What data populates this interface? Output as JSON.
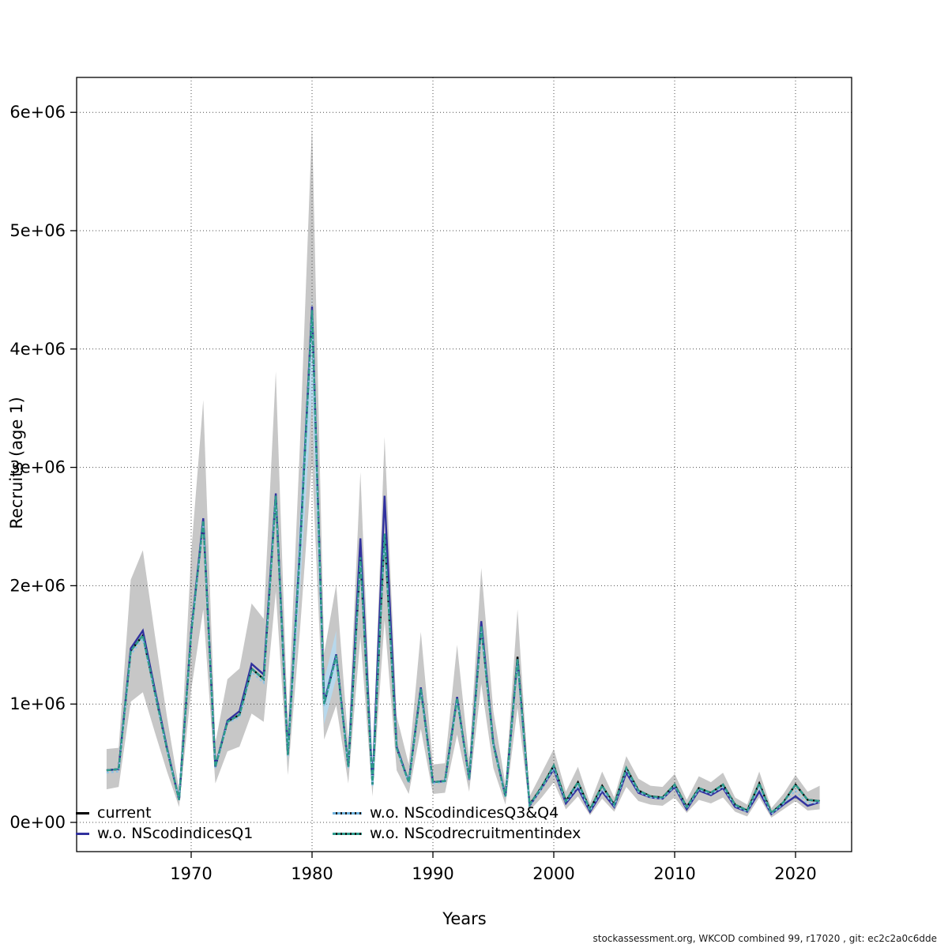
{
  "footer": "stockassessment.org, WKCOD combined 99, r17020 , git: ec2c2a0c6dde",
  "axes": {
    "xlabel": "Years",
    "ylabel": "Recruits (age 1)",
    "x_ticks": [
      1970,
      1980,
      1990,
      2000,
      2010,
      2020
    ],
    "y_ticks": [
      {
        "v": 0,
        "label": "0e+00"
      },
      {
        "v": 1,
        "label": "1e+06"
      },
      {
        "v": 2,
        "label": "2e+06"
      },
      {
        "v": 3,
        "label": "3e+06"
      },
      {
        "v": 4,
        "label": "4e+06"
      },
      {
        "v": 5,
        "label": "5e+06"
      },
      {
        "v": 6,
        "label": "6e+06"
      }
    ]
  },
  "legend": [
    {
      "label": "current",
      "color": "#000000",
      "style": "solid"
    },
    {
      "label": "w.o. NScodindicesQ1",
      "color": "#31319E",
      "style": "solid"
    },
    {
      "label": "w.o. NScodindicesQ3&Q4",
      "color": "#8FC4E6",
      "style": "dotted"
    },
    {
      "label": "w.o. NScodrecruitmentindex",
      "color": "#2D9B8C",
      "style": "dotted"
    }
  ],
  "colors": {
    "ci_band": "#C7C7C7",
    "inner_ci_band": "#B5D9F0",
    "current": "#000000",
    "wo_NScodindicesQ1": "#31319E",
    "wo_NScodindicesQ3Q4": "#8FC4E6",
    "wo_NScodrecruitmentindex": "#2D9B8C",
    "grid": "#4d4d4d",
    "axis": "#000000"
  },
  "chart_data": {
    "type": "line",
    "title": "",
    "xlabel": "Years",
    "ylabel": "Recruits (age 1)",
    "units": "millions of recruits",
    "xlim": [
      1961.5,
      2024.5
    ],
    "ylim": [
      0,
      6.3
    ],
    "grid": "dotted both axes at labeled ticks",
    "legend_position": "bottom-left inside plot, two columns",
    "x": [
      1963,
      1964,
      1965,
      1966,
      1967,
      1968,
      1969,
      1970,
      1971,
      1972,
      1973,
      1974,
      1975,
      1976,
      1977,
      1978,
      1979,
      1980,
      1981,
      1982,
      1983,
      1984,
      1985,
      1986,
      1987,
      1988,
      1989,
      1990,
      1991,
      1992,
      1993,
      1994,
      1995,
      1996,
      1997,
      1998,
      1999,
      2000,
      2001,
      2002,
      2003,
      2004,
      2005,
      2006,
      2007,
      2008,
      2009,
      2010,
      2011,
      2012,
      2013,
      2014,
      2015,
      2016,
      2017,
      2018,
      2019,
      2020,
      2021,
      2022
    ],
    "series": [
      {
        "name": "current",
        "values": [
          0.44,
          0.45,
          1.45,
          1.58,
          1.1,
          0.62,
          0.19,
          1.6,
          2.55,
          0.47,
          0.85,
          0.91,
          1.3,
          1.21,
          2.76,
          0.57,
          2.3,
          4.33,
          1.0,
          1.41,
          0.47,
          2.24,
          0.32,
          2.44,
          0.63,
          0.34,
          1.13,
          0.34,
          0.35,
          1.05,
          0.37,
          1.66,
          0.66,
          0.22,
          1.4,
          0.15,
          0.3,
          0.48,
          0.18,
          0.34,
          0.11,
          0.31,
          0.15,
          0.46,
          0.27,
          0.22,
          0.21,
          0.32,
          0.13,
          0.29,
          0.25,
          0.32,
          0.15,
          0.1,
          0.33,
          0.08,
          0.17,
          0.32,
          0.19,
          0.18
        ]
      },
      {
        "name": "w.o. NScodindicesQ1",
        "values": [
          0.44,
          0.45,
          1.47,
          1.62,
          1.12,
          0.63,
          0.19,
          1.61,
          2.57,
          0.47,
          0.86,
          0.94,
          1.34,
          1.25,
          2.78,
          0.58,
          2.32,
          4.36,
          1.01,
          1.42,
          0.47,
          2.4,
          0.32,
          2.76,
          0.64,
          0.34,
          1.14,
          0.34,
          0.35,
          1.06,
          0.36,
          1.7,
          0.67,
          0.22,
          1.38,
          0.14,
          0.29,
          0.45,
          0.16,
          0.29,
          0.09,
          0.26,
          0.13,
          0.42,
          0.25,
          0.21,
          0.2,
          0.3,
          0.11,
          0.27,
          0.23,
          0.29,
          0.13,
          0.09,
          0.26,
          0.07,
          0.15,
          0.22,
          0.14,
          0.17
        ]
      },
      {
        "name": "w.o. NScodindicesQ3&Q4",
        "values": [
          0.42,
          0.43,
          1.42,
          1.55,
          1.08,
          0.61,
          0.19,
          1.58,
          2.52,
          0.46,
          0.84,
          0.89,
          1.27,
          1.18,
          2.73,
          0.56,
          2.27,
          4.3,
          0.98,
          1.39,
          0.46,
          2.2,
          0.31,
          2.4,
          0.62,
          0.33,
          1.11,
          0.33,
          0.34,
          1.03,
          0.36,
          1.63,
          0.65,
          0.21,
          1.37,
          0.14,
          0.29,
          0.46,
          0.17,
          0.31,
          0.1,
          0.28,
          0.14,
          0.44,
          0.26,
          0.21,
          0.2,
          0.31,
          0.12,
          0.28,
          0.24,
          0.3,
          0.14,
          0.09,
          0.3,
          0.07,
          0.16,
          0.27,
          0.16,
          0.17
        ]
      },
      {
        "name": "w.o. NScodrecruitmentindex",
        "values": [
          0.44,
          0.45,
          1.45,
          1.58,
          1.1,
          0.62,
          0.19,
          1.6,
          2.55,
          0.47,
          0.85,
          0.91,
          1.3,
          1.21,
          2.76,
          0.57,
          2.3,
          4.33,
          1.0,
          1.41,
          0.47,
          2.24,
          0.32,
          2.44,
          0.63,
          0.34,
          1.13,
          0.34,
          0.35,
          1.05,
          0.37,
          1.66,
          0.66,
          0.22,
          1.38,
          0.15,
          0.3,
          0.48,
          0.18,
          0.34,
          0.11,
          0.31,
          0.15,
          0.46,
          0.27,
          0.22,
          0.21,
          0.32,
          0.13,
          0.29,
          0.25,
          0.32,
          0.15,
          0.1,
          0.33,
          0.08,
          0.17,
          0.32,
          0.19,
          0.18
        ]
      }
    ],
    "ci_band_current": {
      "lower": [
        0.28,
        0.3,
        1.02,
        1.1,
        0.76,
        0.43,
        0.13,
        1.12,
        1.8,
        0.33,
        0.6,
        0.64,
        0.92,
        0.85,
        1.95,
        0.4,
        1.62,
        3.05,
        0.7,
        0.99,
        0.33,
        1.57,
        0.22,
        1.71,
        0.44,
        0.24,
        0.79,
        0.24,
        0.25,
        0.74,
        0.26,
        1.17,
        0.46,
        0.15,
        0.97,
        0.1,
        0.21,
        0.34,
        0.11,
        0.22,
        0.06,
        0.2,
        0.09,
        0.3,
        0.18,
        0.15,
        0.14,
        0.21,
        0.08,
        0.19,
        0.16,
        0.21,
        0.09,
        0.05,
        0.21,
        0.04,
        0.11,
        0.18,
        0.1,
        0.11
      ],
      "upper": [
        0.62,
        0.63,
        2.05,
        2.3,
        1.58,
        0.89,
        0.28,
        2.28,
        3.57,
        0.67,
        1.21,
        1.3,
        1.85,
        1.72,
        3.81,
        0.81,
        3.2,
        5.9,
        1.43,
        2.01,
        0.67,
        2.96,
        0.46,
        3.26,
        0.9,
        0.49,
        1.61,
        0.49,
        0.5,
        1.5,
        0.53,
        2.15,
        0.94,
        0.32,
        1.8,
        0.22,
        0.42,
        0.62,
        0.26,
        0.47,
        0.16,
        0.43,
        0.21,
        0.56,
        0.37,
        0.31,
        0.3,
        0.41,
        0.19,
        0.39,
        0.34,
        0.42,
        0.21,
        0.15,
        0.43,
        0.12,
        0.24,
        0.4,
        0.26,
        0.31
      ]
    },
    "inner_ci_band": {
      "x": [
        1978,
        1979,
        1980,
        1981,
        1982
      ],
      "lower": [
        0.5,
        1.95,
        3.6,
        0.83,
        1.22
      ],
      "upper": [
        0.65,
        2.62,
        4.45,
        1.2,
        1.62
      ]
    }
  }
}
